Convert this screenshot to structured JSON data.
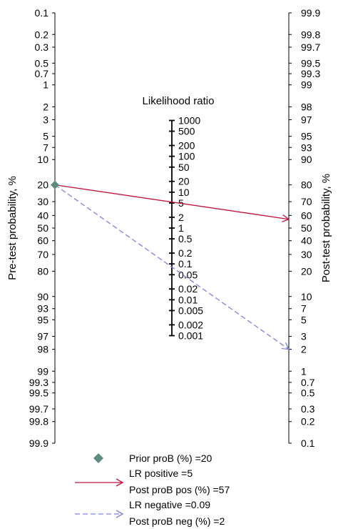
{
  "chart_data": {
    "type": "line",
    "title": "",
    "left_axis": {
      "label": "Pre-test probability, %",
      "ticks": [
        "0.1",
        "0.2",
        "0.3",
        "0.5",
        "0.7",
        "1",
        "2",
        "3",
        "5",
        "7",
        "10",
        "20",
        "30",
        "40",
        "50",
        "60",
        "70",
        "80",
        "90",
        "93",
        "95",
        "97",
        "98",
        "99",
        "99.3",
        "99.5",
        "99.7",
        "99.8",
        "99.9"
      ]
    },
    "right_axis": {
      "label": "Post-test probability, %",
      "ticks": [
        "99.9",
        "99.8",
        "99.7",
        "99.5",
        "99.3",
        "99",
        "98",
        "97",
        "95",
        "93",
        "90",
        "80",
        "70",
        "60",
        "50",
        "40",
        "30",
        "20",
        "10",
        "7",
        "5",
        "3",
        "2",
        "1",
        "0.7",
        "0.5",
        "0.3",
        "0.2",
        "0.1"
      ]
    },
    "center_axis": {
      "label": "Likelihood ratio",
      "ticks": [
        "1000",
        "500",
        "200",
        "100",
        "50",
        "20",
        "10",
        "5",
        "2",
        "1",
        "0.5",
        "0.2",
        "0.1",
        "0.05",
        "0.02",
        "0.01",
        "0.005",
        "0.002",
        "0.001"
      ]
    },
    "prior_probability": 20,
    "series": [
      {
        "name": "LR positive",
        "lr": 5,
        "pre": 20,
        "post": 57,
        "color": "#c0143c",
        "style": "solid"
      },
      {
        "name": "LR negative",
        "lr": 0.09,
        "pre": 20,
        "post": 2,
        "color": "#8080e0",
        "style": "dashed"
      }
    ],
    "marker_color": "#5f8a80"
  },
  "legend": {
    "prior": "Prior proB (%) =20",
    "lr_pos": "LR positive =5",
    "post_pos": "Post proB pos (%) =57",
    "lr_neg": "LR negative =0.09",
    "post_neg": "Post proB neg (%) =2"
  }
}
